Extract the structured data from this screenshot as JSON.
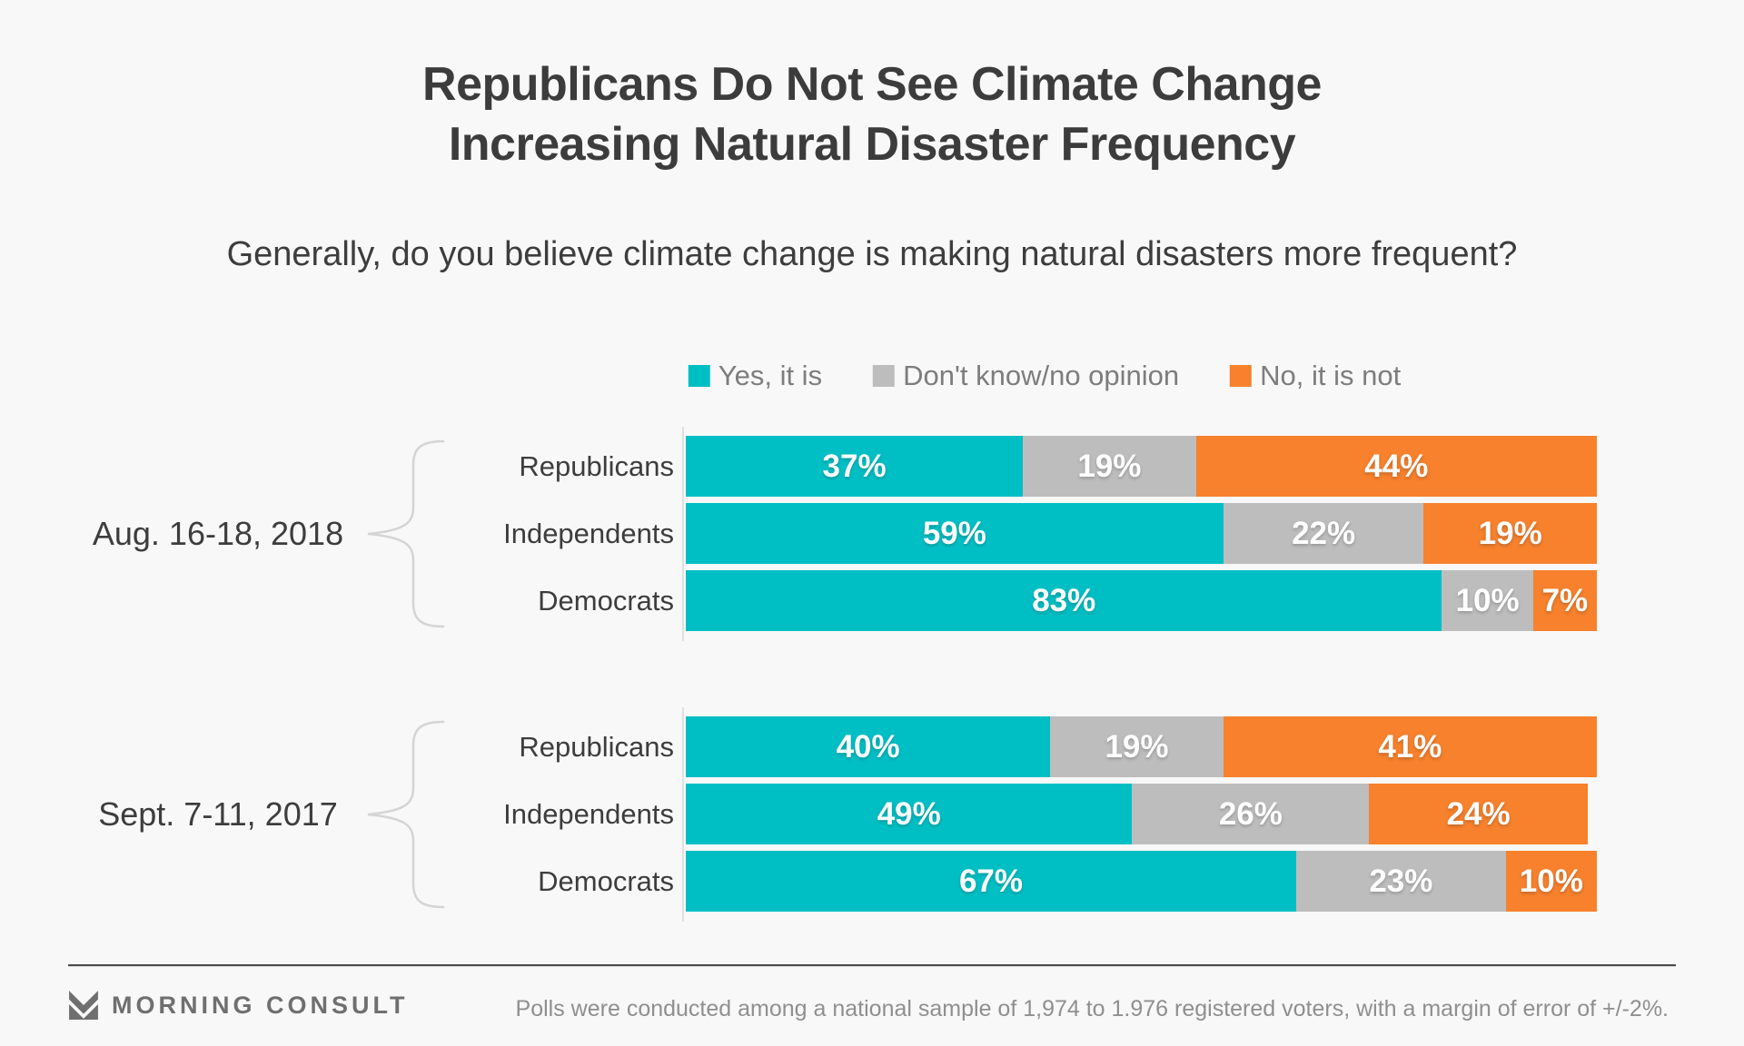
{
  "title": {
    "line1": "Republicans Do Not See Climate Change",
    "line2": "Increasing Natural Disaster Frequency"
  },
  "subtitle": "Generally, do you believe climate change is making natural disasters more frequent?",
  "chart_data": {
    "type": "bar",
    "variant": "stacked-horizontal",
    "unit": "%",
    "xlim": [
      0,
      100
    ],
    "legend_position": "top",
    "series": [
      {
        "name": "Yes, it is",
        "color": "#00BFC4"
      },
      {
        "name": "Don't know/no opinion",
        "color": "#BDBDBD"
      },
      {
        "name": "No, it is not",
        "color": "#F7812C"
      }
    ],
    "groups": [
      {
        "label": "Aug. 16-18, 2018",
        "rows": [
          {
            "category": "Republicans",
            "values": [
              37,
              19,
              44
            ]
          },
          {
            "category": "Independents",
            "values": [
              59,
              22,
              19
            ]
          },
          {
            "category": "Democrats",
            "values": [
              83,
              10,
              7
            ]
          }
        ]
      },
      {
        "label": "Sept. 7-11, 2017",
        "rows": [
          {
            "category": "Republicans",
            "values": [
              40,
              19,
              41
            ]
          },
          {
            "category": "Independents",
            "values": [
              49,
              26,
              24
            ]
          },
          {
            "category": "Democrats",
            "values": [
              67,
              23,
              10
            ]
          }
        ]
      }
    ]
  },
  "footer": {
    "brand": "MORNING CONSULT",
    "note": "Polls were conducted among a national sample of 1,974 to 1.976 registered voters, with a margin of error of +/-2%."
  }
}
